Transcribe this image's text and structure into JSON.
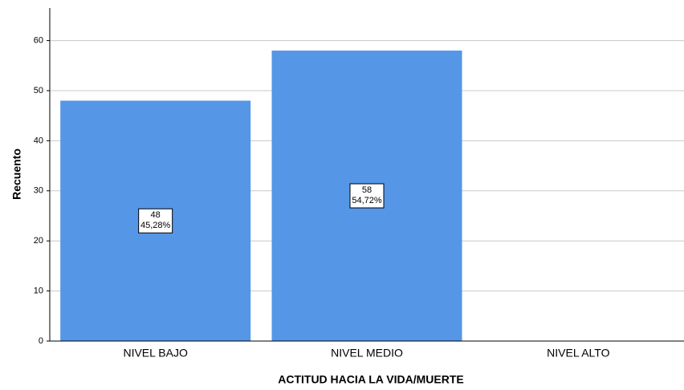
{
  "chart_data": {
    "type": "bar",
    "x_label": "ACTITUD HACIA LA VIDA/MUERTE",
    "y_label": "Recuento",
    "categories": [
      "NIVEL BAJO",
      "NIVEL MEDIO",
      "NIVEL ALTO"
    ],
    "values": [
      48,
      58,
      0
    ],
    "percents": [
      45.28,
      54.72,
      0
    ],
    "percent_labels": [
      "45,28%",
      "54,72%",
      null
    ],
    "color": "#5596e6",
    "ylim": [
      0,
      66.5
    ],
    "yticks": [
      0,
      10,
      20,
      30,
      40,
      50,
      60
    ],
    "grid": true
  }
}
